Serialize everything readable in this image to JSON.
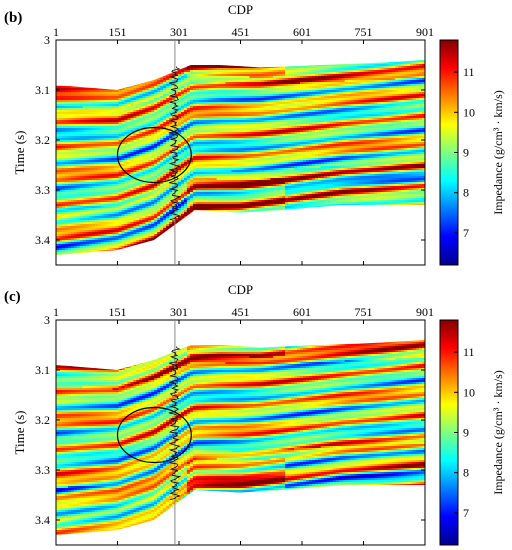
{
  "chart_data": [
    {
      "type": "heatmap",
      "panel_label": "(b)",
      "title": "",
      "xlabel": "CDP",
      "ylabel": "Time (s)",
      "x_ticks": [
        1,
        151,
        301,
        451,
        601,
        751,
        901
      ],
      "xlim": [
        1,
        901
      ],
      "y_ticks": [
        3,
        3.1,
        3.2,
        3.3,
        3.4
      ],
      "ylim": [
        3.0,
        3.45
      ],
      "colorbar_label": "Impedance (g/cm³ · km/s)",
      "colorbar_ticks": [
        7,
        8,
        9,
        10,
        11
      ],
      "colorbar_range": [
        6.2,
        11.8
      ],
      "colormap": "jet",
      "well_cdp": 291,
      "ellipse": {
        "cdp_center": 241,
        "time_center": 3.23,
        "cdp_radius": 90,
        "time_radius": 0.055
      },
      "top_boundary": [
        [
          1,
          3.09
        ],
        [
          150,
          3.1
        ],
        [
          240,
          3.08
        ],
        [
          300,
          3.06
        ],
        [
          330,
          3.05
        ],
        [
          400,
          3.05
        ],
        [
          500,
          3.055
        ],
        [
          650,
          3.05
        ],
        [
          800,
          3.045
        ],
        [
          901,
          3.04
        ]
      ],
      "bottom_boundary": [
        [
          1,
          3.43
        ],
        [
          150,
          3.42
        ],
        [
          240,
          3.4
        ],
        [
          290,
          3.37
        ],
        [
          340,
          3.34
        ],
        [
          450,
          3.345
        ],
        [
          550,
          3.34
        ],
        [
          700,
          3.33
        ],
        [
          901,
          3.33
        ]
      ]
    },
    {
      "type": "heatmap",
      "panel_label": "(c)",
      "title": "",
      "xlabel": "CDP",
      "ylabel": "Time (s)",
      "x_ticks": [
        1,
        151,
        301,
        451,
        601,
        751,
        901
      ],
      "xlim": [
        1,
        901
      ],
      "y_ticks": [
        3,
        3.1,
        3.2,
        3.3,
        3.4
      ],
      "ylim": [
        3.0,
        3.45
      ],
      "colorbar_label": "Impedance (g/cm³ · km/s)",
      "colorbar_ticks": [
        7,
        8,
        9,
        10,
        11
      ],
      "colorbar_range": [
        6.2,
        11.8
      ],
      "colormap": "jet",
      "well_cdp": 291,
      "ellipse": {
        "cdp_center": 241,
        "time_center": 3.23,
        "cdp_radius": 90,
        "time_radius": 0.055
      },
      "top_boundary": [
        [
          1,
          3.09
        ],
        [
          150,
          3.1
        ],
        [
          240,
          3.08
        ],
        [
          300,
          3.06
        ],
        [
          330,
          3.05
        ],
        [
          400,
          3.05
        ],
        [
          500,
          3.055
        ],
        [
          650,
          3.05
        ],
        [
          800,
          3.045
        ],
        [
          901,
          3.04
        ]
      ],
      "bottom_boundary": [
        [
          1,
          3.43
        ],
        [
          150,
          3.42
        ],
        [
          240,
          3.4
        ],
        [
          290,
          3.37
        ],
        [
          340,
          3.34
        ],
        [
          450,
          3.345
        ],
        [
          550,
          3.34
        ],
        [
          700,
          3.33
        ],
        [
          901,
          3.33
        ]
      ]
    }
  ]
}
